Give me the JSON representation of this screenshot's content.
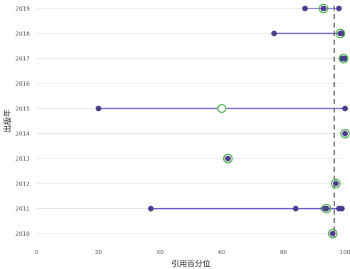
{
  "chart_data": {
    "type": "scatter",
    "subtype": "dot-range",
    "xlabel": "引用百分位",
    "ylabel": "出版年",
    "xlim": [
      0,
      100
    ],
    "x_ticks": [
      0,
      20,
      40,
      60,
      80,
      100
    ],
    "y_categories": [
      "2010",
      "2011",
      "2012",
      "2013",
      "2014",
      "2015",
      "2016",
      "2017",
      "2018",
      "2019"
    ],
    "reference_line": {
      "x": 96.5,
      "style": "dashed",
      "color": "#666666"
    },
    "grid": "horizontal",
    "colors": {
      "range_line": "#6a5acd",
      "point": "#4b3c8e",
      "highlight_ring": "#4caf50",
      "grid": "#e3e3e3"
    },
    "rows": [
      {
        "year": "2019",
        "points": [
          87,
          93,
          98
        ],
        "highlight": [
          93
        ]
      },
      {
        "year": "2018",
        "points": [
          77,
          98.5,
          99
        ],
        "highlight": [
          98.5
        ]
      },
      {
        "year": "2017",
        "points": [
          99,
          99.5,
          100
        ],
        "highlight": [
          99.5
        ]
      },
      {
        "year": "2016",
        "points": [],
        "highlight": []
      },
      {
        "year": "2015",
        "points": [
          20,
          100
        ],
        "highlight": [
          60
        ],
        "hollow": [
          60
        ]
      },
      {
        "year": "2014",
        "points": [
          100
        ],
        "highlight": [
          100
        ]
      },
      {
        "year": "2013",
        "points": [
          62
        ],
        "highlight": [
          62
        ]
      },
      {
        "year": "2012",
        "points": [
          97
        ],
        "highlight": [
          97
        ]
      },
      {
        "year": "2011",
        "points": [
          37,
          84,
          93,
          94,
          98,
          99
        ],
        "highlight": [
          94
        ]
      },
      {
        "year": "2010",
        "points": [
          96
        ],
        "highlight": [
          96
        ]
      }
    ]
  }
}
